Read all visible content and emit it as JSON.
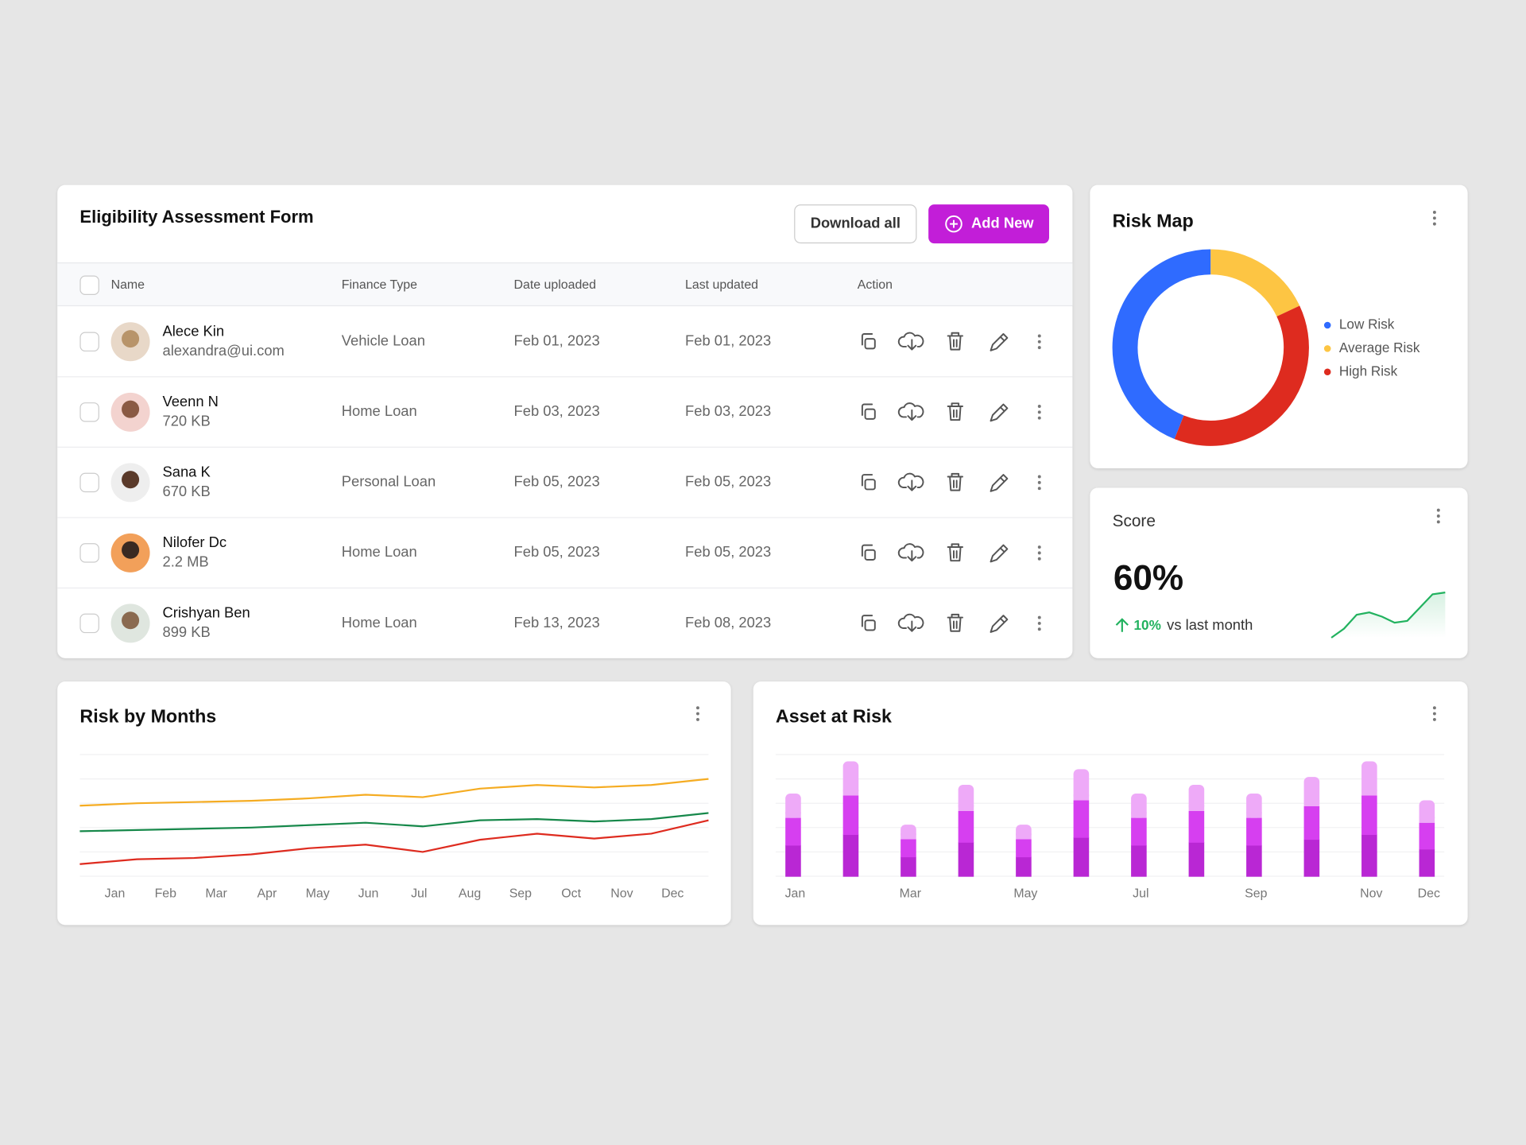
{
  "table": {
    "title": "Eligibility Assessment Form",
    "buttons": [
      "Download all",
      "Add New"
    ],
    "headers": [
      "Name",
      "Finance Type",
      "Date uploaded",
      "Last updated",
      "Action"
    ],
    "rows": [
      [
        "Alece Kin",
        "alexandra@ui.com",
        "Vehicle Loan",
        "Feb 01, 2023",
        "Feb 01, 2023"
      ],
      [
        "Veenn N",
        "720 KB",
        "Home Loan",
        "Feb 03, 2023",
        "Feb 03, 2023"
      ],
      [
        "Sana K",
        "670 KB",
        "Personal Loan",
        "Feb 05, 2023",
        "Feb 05, 2023"
      ],
      [
        "Nilofer Dc",
        "2.2 MB",
        "Home Loan",
        "Feb 05, 2023",
        "Feb 05, 2023"
      ],
      [
        "Crishyan Ben",
        "899 KB",
        "Home Loan",
        "Feb 13, 2023",
        "Feb 08, 2023"
      ]
    ]
  },
  "chart_data": [
    {
      "type": "pie",
      "title": "Risk Map",
      "donut": true,
      "categories": [
        "Low Risk",
        "Average Risk",
        "High Risk"
      ],
      "values": [
        44,
        18,
        38
      ],
      "colors": [
        "#2f6bff",
        "#fdc543",
        "#de2b1f"
      ]
    },
    {
      "type": "sparkline",
      "title": "Score",
      "value": "60%",
      "change": "10%",
      "change_label": "vs last month",
      "values": [
        0,
        15,
        38,
        42,
        35,
        25,
        28,
        50,
        72,
        75
      ],
      "ylim": [
        0,
        100
      ],
      "color": "#22b25f"
    },
    {
      "type": "line",
      "title": "Risk by Months",
      "categories": [
        "Jan",
        "Feb",
        "Mar",
        "Apr",
        "May",
        "Jun",
        "Jul",
        "Aug",
        "Sep",
        "Oct",
        "Nov",
        "Dec"
      ],
      "series": [
        {
          "color": "#f5ac22",
          "values": [
            58,
            60,
            61,
            62,
            64,
            67,
            65,
            72,
            75,
            73,
            75,
            80
          ]
        },
        {
          "color": "#16884a",
          "values": [
            37,
            38,
            39,
            40,
            42,
            44,
            41,
            46,
            47,
            45,
            47,
            52
          ]
        },
        {
          "color": "#de2b1f",
          "values": [
            10,
            14,
            15,
            18,
            23,
            26,
            20,
            30,
            35,
            31,
            35,
            46
          ]
        }
      ],
      "ylim": [
        0,
        100
      ],
      "yticks": [
        0,
        20,
        40,
        60,
        80,
        100
      ],
      "grid": true
    },
    {
      "type": "bar",
      "stacked": true,
      "title": "Asset at Risk",
      "categories": [
        "Jan",
        null,
        "Mar",
        null,
        "May",
        null,
        "Jul",
        null,
        "Sep",
        null,
        "Nov",
        "Dec"
      ],
      "series": [
        {
          "color": "#b927d4",
          "values": [
            32,
            43,
            20,
            35,
            20,
            40,
            32,
            35,
            32,
            38,
            43,
            28
          ]
        },
        {
          "color": "#d63ff0",
          "values": [
            28,
            40,
            18,
            32,
            18,
            38,
            28,
            32,
            28,
            34,
            40,
            27
          ]
        },
        {
          "color": "#eeaaf8",
          "values": [
            25,
            35,
            15,
            27,
            15,
            32,
            25,
            27,
            25,
            30,
            35,
            23
          ]
        }
      ],
      "ylim": [
        0,
        125
      ],
      "yticks": [
        0,
        25,
        50,
        75,
        100,
        125
      ],
      "grid": true
    }
  ]
}
